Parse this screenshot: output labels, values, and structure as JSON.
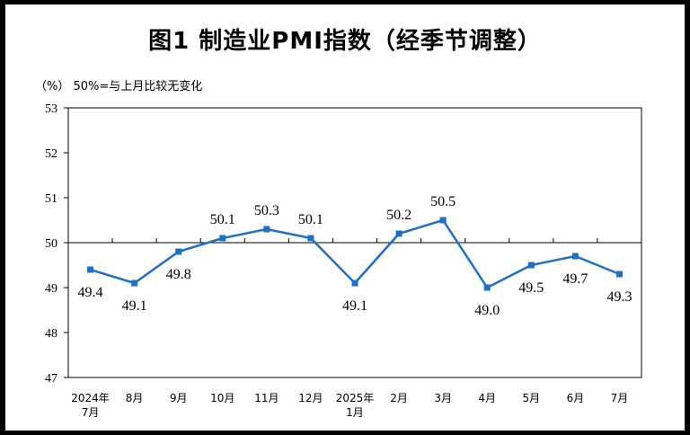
{
  "title": "图1  制造业PMI指数（经季节调整）",
  "unit_note": "（%）  50%=与上月比较无变化",
  "colors": {
    "line": "#1f6fc5",
    "axis": "#000000",
    "background": "#ffffff",
    "frame": "#000000"
  },
  "chart_data": {
    "type": "line",
    "title": "图1  制造业PMI指数（经季节调整）",
    "ylabel": "（%）",
    "reference_line": {
      "value": 50,
      "label": "50%=与上月比较无变化"
    },
    "ylim": [
      47,
      53
    ],
    "yticks": [
      47,
      48,
      49,
      50,
      51,
      52,
      53
    ],
    "categories": [
      [
        "2024年",
        "7月"
      ],
      [
        "8月"
      ],
      [
        "9月"
      ],
      [
        "10月"
      ],
      [
        "11月"
      ],
      [
        "12月"
      ],
      [
        "2025年",
        "1月"
      ],
      [
        "2月"
      ],
      [
        "3月"
      ],
      [
        "4月"
      ],
      [
        "5月"
      ],
      [
        "6月"
      ],
      [
        "7月"
      ]
    ],
    "series": [
      {
        "values": [
          49.4,
          49.1,
          49.8,
          50.1,
          50.3,
          50.1,
          49.1,
          50.2,
          50.5,
          49.0,
          49.5,
          49.7,
          49.3
        ],
        "labels": [
          "49.4",
          "49.1",
          "49.8",
          "50.1",
          "50.3",
          "50.1",
          "49.1",
          "50.2",
          "50.5",
          "49.0",
          "49.5",
          "49.7",
          "49.3"
        ],
        "label_positions": [
          "below",
          "below",
          "below",
          "above",
          "above",
          "above",
          "below",
          "above",
          "above",
          "below",
          "below",
          "below",
          "below"
        ]
      }
    ],
    "grid": false,
    "legend": "none"
  }
}
